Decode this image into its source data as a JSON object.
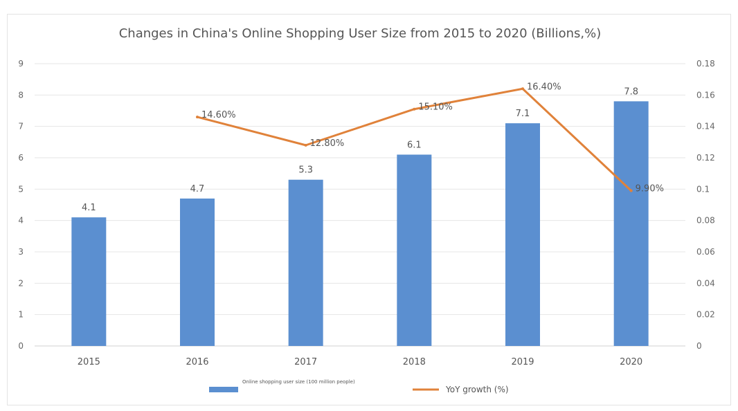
{
  "chart_data": {
    "type": "bar",
    "title": "Changes in China's Online Shopping User Size from 2015 to 2020 (Billions,%)",
    "categories": [
      "2015",
      "2016",
      "2017",
      "2018",
      "2019",
      "2020"
    ],
    "series": [
      {
        "name": "Online shopping user size (100 million people)",
        "type": "bar",
        "axis": "left",
        "values": [
          4.1,
          4.7,
          5.3,
          6.1,
          7.1,
          7.8
        ],
        "labels": [
          "4.1",
          "4.7",
          "5.3",
          "6.1",
          "7.1",
          "7.8"
        ],
        "color": "#5b8fd0"
      },
      {
        "name": "YoY growth (%)",
        "type": "line",
        "axis": "right",
        "values": [
          null,
          0.146,
          0.128,
          0.151,
          0.164,
          0.099
        ],
        "labels": [
          "",
          "14.60%",
          "12.80%",
          "15.10%",
          "16.40%",
          "9.90%"
        ],
        "color": "#e0823a"
      }
    ],
    "yleft": {
      "lim": [
        0,
        9
      ],
      "ticks": [
        "0",
        "1",
        "2",
        "3",
        "4",
        "5",
        "6",
        "7",
        "8",
        "9"
      ]
    },
    "yright": {
      "lim": [
        0,
        0.18
      ],
      "ticks": [
        "0",
        "0.02",
        "0.04",
        "0.06",
        "0.08",
        "0.1",
        "0.12",
        "0.14",
        "0.16",
        "0.18"
      ]
    },
    "grid": true,
    "legend": "bottom"
  }
}
